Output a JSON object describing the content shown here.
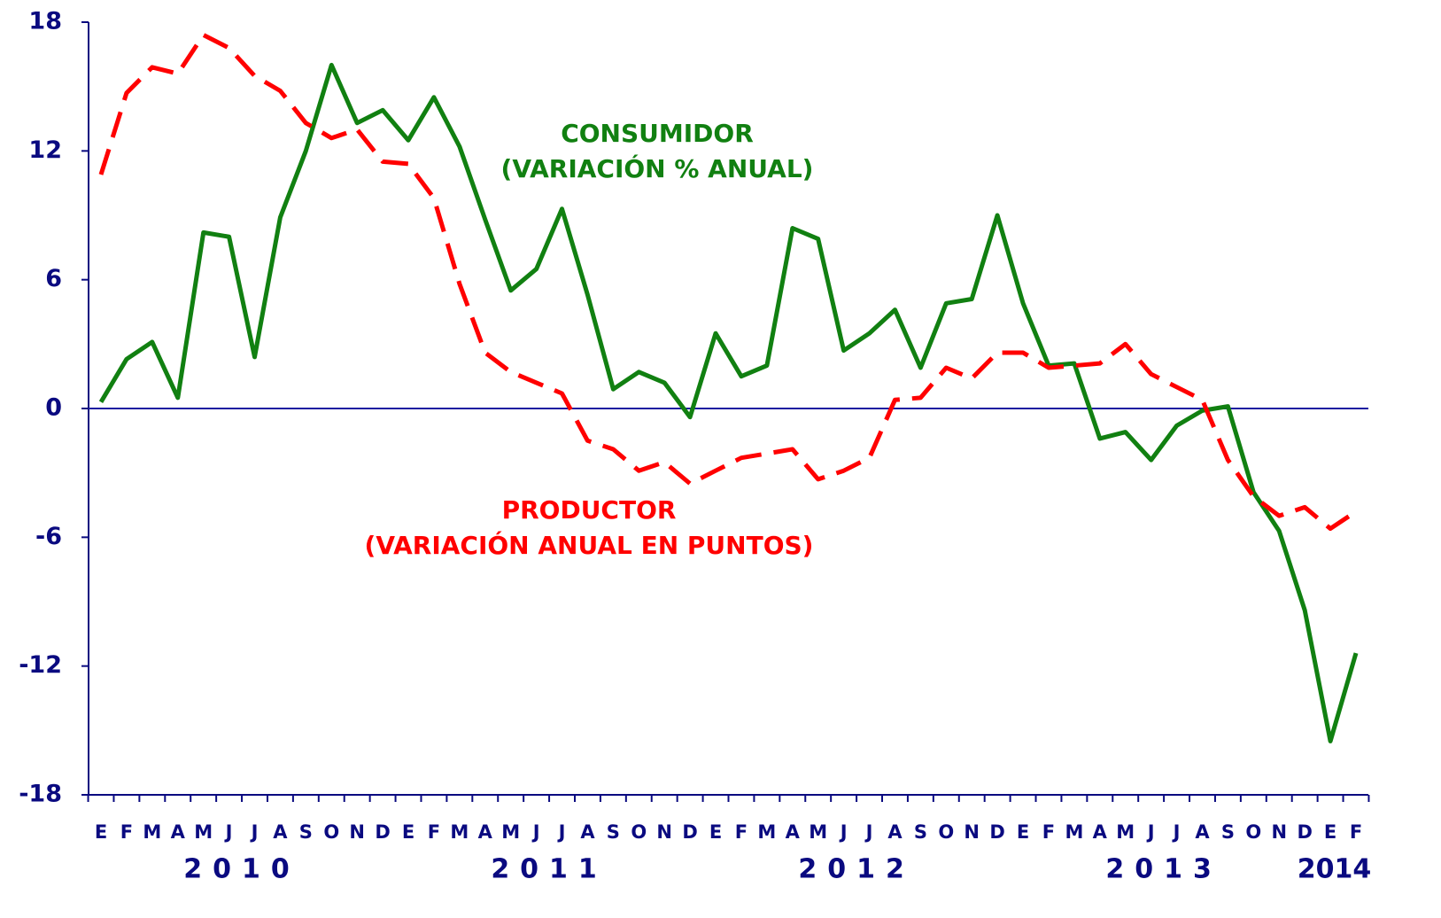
{
  "chart_data": {
    "type": "line",
    "categories": [
      "E",
      "F",
      "M",
      "A",
      "M",
      "J",
      "J",
      "A",
      "S",
      "O",
      "N",
      "D",
      "E",
      "F",
      "M",
      "A",
      "M",
      "J",
      "J",
      "A",
      "S",
      "O",
      "N",
      "D",
      "E",
      "F",
      "M",
      "A",
      "M",
      "J",
      "J",
      "A",
      "S",
      "O",
      "N",
      "D",
      "E",
      "F",
      "M",
      "A",
      "M",
      "J",
      "J",
      "A",
      "S",
      "O",
      "N",
      "D",
      "E",
      "F"
    ],
    "years": [
      "2010",
      "2011",
      "2012",
      "2013",
      "2014"
    ],
    "ylim": [
      -18,
      18
    ],
    "yticks": [
      -18,
      -12,
      -6,
      0,
      6,
      12,
      18
    ],
    "series": [
      {
        "name": "CONSUMIDOR",
        "label": "(VARIACIÓN % ANUAL)",
        "color": "#118011",
        "dashed": false,
        "values": [
          0.3,
          2.3,
          3.1,
          0.5,
          8.2,
          8.0,
          2.4,
          8.9,
          12.0,
          16.0,
          13.3,
          13.9,
          12.5,
          14.5,
          12.2,
          8.8,
          5.5,
          6.5,
          9.3,
          5.3,
          0.9,
          1.7,
          1.2,
          -0.4,
          3.5,
          1.5,
          2.0,
          8.4,
          7.9,
          2.7,
          3.5,
          4.6,
          1.9,
          4.9,
          5.1,
          9.0,
          4.9,
          2.0,
          2.1,
          -1.4,
          -1.1,
          -2.4,
          -0.8,
          -0.1,
          0.1,
          -3.9,
          -5.7,
          -9.4,
          -15.5,
          -11.4
        ]
      },
      {
        "name": "PRODUCTOR",
        "label": "(VARIACIÓN ANUAL EN PUNTOS)",
        "color": "#ff0000",
        "dashed": true,
        "values": [
          10.9,
          14.7,
          15.9,
          15.6,
          17.4,
          16.8,
          15.5,
          14.8,
          13.3,
          12.6,
          13.0,
          11.5,
          11.4,
          9.8,
          5.8,
          2.6,
          1.7,
          1.2,
          0.7,
          -1.5,
          -1.9,
          -2.9,
          -2.5,
          -3.5,
          -2.9,
          -2.3,
          -2.1,
          -1.9,
          -3.3,
          -2.9,
          -2.3,
          0.4,
          0.5,
          1.9,
          1.4,
          2.6,
          2.6,
          1.9,
          2.0,
          2.1,
          3.0,
          1.6,
          1.0,
          0.4,
          -2.4,
          -4.1,
          -5.0,
          -4.6,
          -5.6,
          -4.8
        ]
      }
    ]
  }
}
